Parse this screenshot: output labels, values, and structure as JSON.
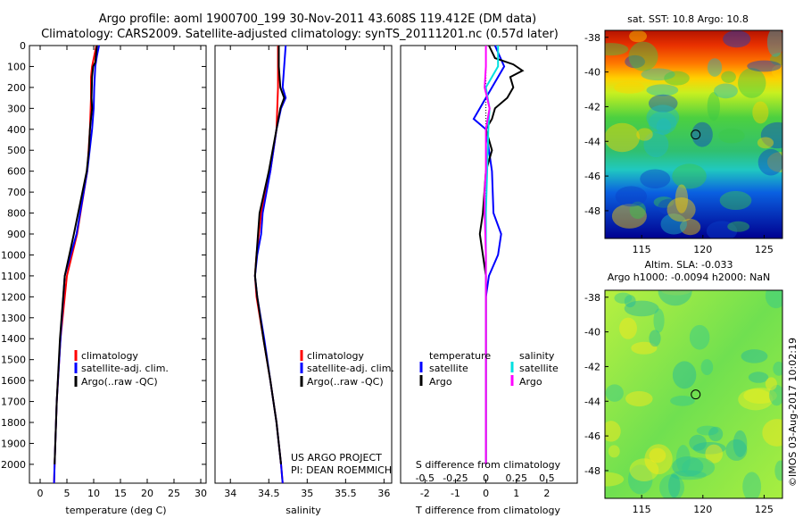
{
  "header": {
    "title_line1": "Argo profile: aoml 1900700_199 30-Nov-2011 43.608S 119.412E (DM data)",
    "title_line2": "Climatology: CARS2009. Satellite-adjusted climatology: synTS_20111201.nc (0.57d later)"
  },
  "chart_data": [
    {
      "type": "line",
      "name": "temperature-profile",
      "xlabel": "temperature (deg C)",
      "ylabel": "",
      "xlim": [
        -2,
        31
      ],
      "ylim": [
        2090,
        0
      ],
      "xticks": [
        "0",
        "5",
        "10",
        "15",
        "20",
        "25",
        "30"
      ],
      "yticks": [
        "0",
        "100",
        "200",
        "300",
        "400",
        "500",
        "600",
        "700",
        "800",
        "900",
        "1000",
        "1100",
        "1200",
        "1300",
        "1400",
        "1500",
        "1600",
        "1700",
        "1800",
        "1900",
        "2000"
      ],
      "legend": [
        "climatology",
        "satellite-adj. clim.",
        "Argo(..raw -QC)"
      ],
      "series": [
        {
          "name": "climatology",
          "color": "#ff0000",
          "depth": [
            0,
            100,
            150,
            250,
            400,
            600,
            900,
            1100,
            1400,
            1700,
            2000,
            2090
          ],
          "values": [
            10.5,
            9.7,
            9.5,
            9.5,
            9.3,
            8.8,
            6.9,
            5.0,
            3.8,
            3.1,
            2.7,
            2.6
          ]
        },
        {
          "name": "satellite-adj. clim.",
          "color": "#0000ff",
          "depth": [
            0,
            50,
            100,
            200,
            300,
            400,
            600,
            900,
            1100,
            1400,
            1700,
            2000,
            2090
          ],
          "values": [
            11.0,
            10.6,
            10.3,
            10.1,
            10.0,
            9.7,
            8.8,
            6.8,
            4.6,
            3.8,
            3.1,
            2.7,
            2.6
          ]
        },
        {
          "name": "Argo(..raw -QC)",
          "color": "#000000",
          "depth": [
            0,
            80,
            100,
            150,
            250,
            300,
            400,
            500,
            600,
            900,
            1100,
            1400,
            1700,
            2000
          ],
          "values": [
            10.6,
            10.3,
            9.9,
            9.7,
            9.6,
            9.7,
            9.3,
            9.1,
            8.7,
            6.3,
            4.6,
            3.7,
            3.1,
            2.7
          ]
        }
      ]
    },
    {
      "type": "line",
      "name": "salinity-profile",
      "xlabel": "salinity",
      "ylabel": "",
      "xlim": [
        33.8,
        36.1
      ],
      "ylim": [
        2090,
        0
      ],
      "xticks": [
        "34",
        "34.5",
        "35",
        "35.5",
        "36"
      ],
      "legend": [
        "climatology",
        "satellite-adj. clim.",
        "Argo(..raw -QC)"
      ],
      "annotation": [
        "US ARGO PROJECT",
        "PI: DEAN ROEMMICH"
      ],
      "series": [
        {
          "name": "climatology",
          "color": "#ff0000",
          "depth": [
            0,
            200,
            400,
            600,
            800,
            1000,
            1100,
            1200,
            1400,
            1600,
            1800,
            2000,
            2090
          ],
          "values": [
            34.62,
            34.62,
            34.6,
            34.52,
            34.4,
            34.34,
            34.32,
            34.34,
            34.43,
            34.52,
            34.6,
            34.66,
            34.68
          ]
        },
        {
          "name": "satellite-adj. clim.",
          "color": "#0000ff",
          "depth": [
            0,
            100,
            200,
            250,
            300,
            400,
            600,
            800,
            900,
            1000,
            1100,
            1200,
            1400,
            1600,
            1800,
            2000,
            2090
          ],
          "values": [
            34.72,
            34.7,
            34.68,
            34.72,
            34.66,
            34.6,
            34.52,
            34.42,
            34.4,
            34.35,
            34.32,
            34.35,
            34.44,
            34.52,
            34.6,
            34.66,
            34.68
          ]
        },
        {
          "name": "Argo(..raw -QC)",
          "color": "#000000",
          "depth": [
            0,
            100,
            200,
            250,
            300,
            400,
            600,
            800,
            900,
            1000,
            1100,
            1200,
            1400,
            1600,
            1800,
            2000
          ],
          "values": [
            34.63,
            34.63,
            34.65,
            34.7,
            34.65,
            34.6,
            34.5,
            34.38,
            34.36,
            34.34,
            34.32,
            34.35,
            34.43,
            34.52,
            34.6,
            34.66
          ]
        }
      ]
    },
    {
      "type": "line",
      "name": "difference-profile",
      "xlabel": "T difference from climatology",
      "xlabel2": "S difference from climatology",
      "ylabel": "",
      "xlim": [
        -2.8,
        3.0
      ],
      "ylim": [
        2090,
        0
      ],
      "xticks": [
        "-2",
        "-1",
        "0",
        "1",
        "2"
      ],
      "xticks2": [
        "-0.5",
        "-0.25",
        "0",
        "0.25",
        "0.5"
      ],
      "legend_left_title": "temperature",
      "legend_right_title": "salinity",
      "legend": [
        "satellite",
        "Argo",
        "satellite",
        "Argo"
      ],
      "series": [
        {
          "name": "temperature satellite",
          "color": "#0000ff",
          "depth": [
            0,
            100,
            200,
            300,
            350,
            400,
            500,
            600,
            800,
            900,
            1000,
            1100,
            1200,
            1400,
            1600,
            1800,
            2000
          ],
          "values": [
            0.3,
            0.6,
            0.2,
            -0.2,
            -0.4,
            0.0,
            0.1,
            0.2,
            0.25,
            0.5,
            0.4,
            0.1,
            0.0,
            0.0,
            0.0,
            0.0,
            0.0
          ]
        },
        {
          "name": "temperature Argo",
          "color": "#000000",
          "depth": [
            0,
            60,
            90,
            120,
            150,
            200,
            250,
            300,
            350,
            400,
            500,
            600,
            800,
            900,
            1000,
            1100,
            1200,
            1400,
            1600,
            1800,
            2000
          ],
          "values": [
            0.1,
            0.3,
            0.9,
            1.2,
            0.8,
            0.9,
            0.7,
            0.3,
            0.2,
            0.0,
            0.2,
            0.0,
            -0.1,
            -0.2,
            -0.1,
            0.0,
            0.0,
            0.0,
            0.0,
            0.0,
            0.0
          ]
        },
        {
          "name": "salinity satellite",
          "color": "#00e0e0",
          "depth": [
            0,
            100,
            200,
            300,
            400,
            600,
            800,
            1000,
            1200,
            1400,
            1600,
            1800,
            2000
          ],
          "values": [
            0.1,
            0.1,
            0.0,
            0.03,
            0.02,
            0.01,
            0.0,
            0.0,
            0.0,
            0.0,
            0.0,
            0.0,
            0.0
          ]
        },
        {
          "name": "salinity Argo",
          "color": "#ff00ff",
          "depth": [
            0,
            100,
            200,
            300,
            400,
            500,
            600,
            700,
            800,
            1000,
            1200,
            1400,
            1600,
            1800,
            2000
          ],
          "values": [
            0.0,
            0.0,
            -0.01,
            0.03,
            0.0,
            0.0,
            0.0,
            -0.01,
            -0.01,
            0.0,
            0.0,
            0.0,
            0.0,
            0.0,
            0.0
          ]
        }
      ]
    },
    {
      "type": "heatmap",
      "name": "sst-map",
      "title": "sat. SST: 10.8  Argo: 10.8",
      "xlim": [
        112,
        126.5
      ],
      "ylim": [
        -49.6,
        -37.6
      ],
      "xticks": [
        "115",
        "120",
        "125"
      ],
      "yticks": [
        "-38",
        "-40",
        "-42",
        "-44",
        "-46",
        "-48"
      ],
      "marker": {
        "lon": 119.412,
        "lat": -43.608
      }
    },
    {
      "type": "heatmap",
      "name": "sla-map",
      "title": "Altim. SLA: -0.033",
      "subtitle": "Argo h1000: -0.0094 h2000: NaN",
      "xlim": [
        112,
        126.5
      ],
      "ylim": [
        -49.6,
        -37.6
      ],
      "xticks": [
        "115",
        "120",
        "125"
      ],
      "yticks": [
        "-38",
        "-40",
        "-42",
        "-44",
        "-46",
        "-48"
      ],
      "marker": {
        "lon": 119.412,
        "lat": -43.608
      }
    }
  ],
  "footer": {
    "stamp": "©IMOS 03-Aug-2017 10:02:19"
  },
  "colors": {
    "climatology": "#ff0000",
    "satellite": "#0000ff",
    "argo": "#000000",
    "salinity_satellite": "#00e0e0",
    "salinity_argo": "#ff00ff"
  }
}
